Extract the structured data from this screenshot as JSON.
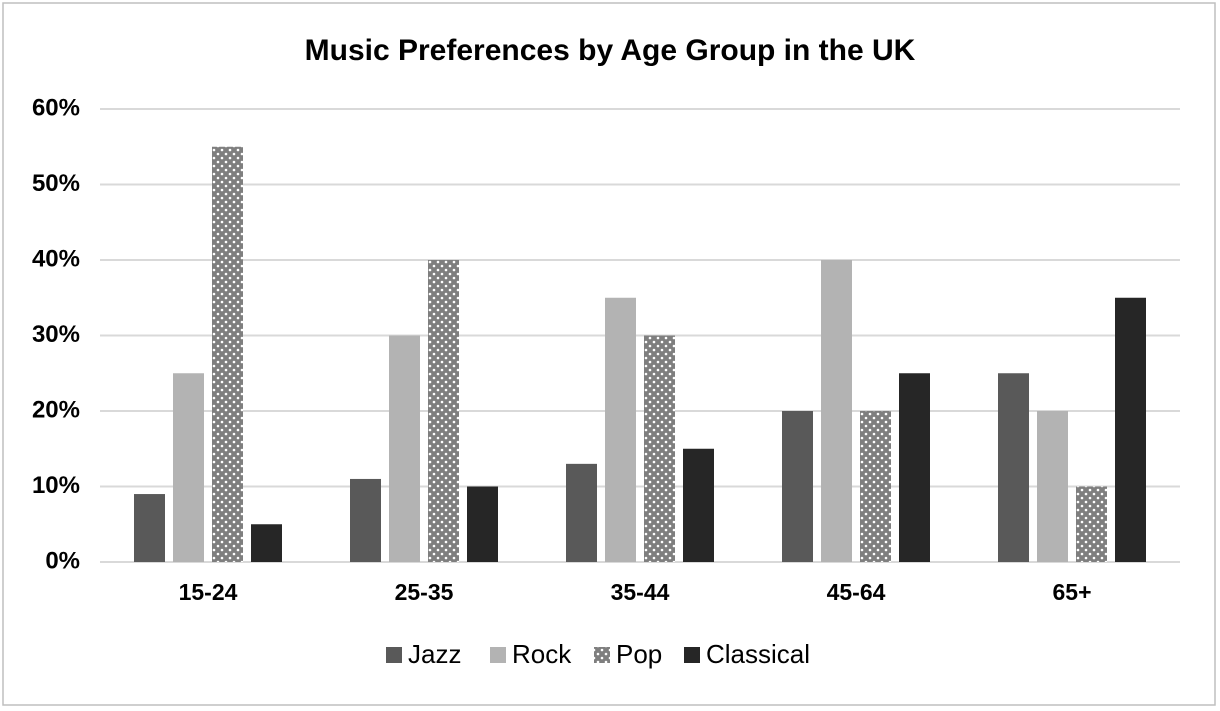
{
  "chart_data": {
    "type": "bar",
    "title": "Music Preferences by Age Group in the UK",
    "categories": [
      "15-24",
      "25-35",
      "35-44",
      "45-64",
      "65+"
    ],
    "series": [
      {
        "name": "Jazz",
        "color": "#595959",
        "values": [
          9,
          11,
          13,
          20,
          25
        ]
      },
      {
        "name": "Rock",
        "color": "#b3b3b3",
        "values": [
          25,
          30,
          35,
          40,
          20
        ]
      },
      {
        "name": "Pop",
        "color": "#7f7f7f",
        "pattern": "dots",
        "values": [
          55,
          40,
          30,
          20,
          10
        ]
      },
      {
        "name": "Classical",
        "color": "#262626",
        "values": [
          5,
          10,
          15,
          25,
          35
        ]
      }
    ],
    "ylim": [
      0,
      60
    ],
    "yticks": [
      {
        "value": 0,
        "label": "0%"
      },
      {
        "value": 10,
        "label": "10%"
      },
      {
        "value": 20,
        "label": "20%"
      },
      {
        "value": 30,
        "label": "30%"
      },
      {
        "value": 40,
        "label": "40%"
      },
      {
        "value": 50,
        "label": "50%"
      },
      {
        "value": 60,
        "label": "60%"
      }
    ],
    "grid": true,
    "legend": "bottom"
  }
}
